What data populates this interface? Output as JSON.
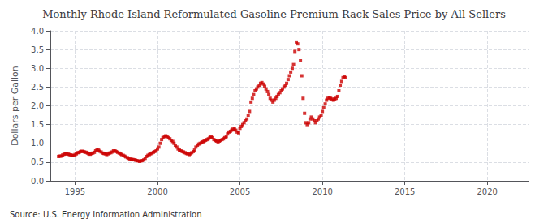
{
  "chart_data": {
    "type": "scatter",
    "title": "Monthly Rhode Island Reformulated Gasoline Premium Rack Sales Price by All Sellers",
    "ylabel": "Dollars per Gallon",
    "annotations": [
      "Source: U.S. Energy Information Administration"
    ],
    "color": "#CC0000",
    "marker": "square",
    "grid": true,
    "xlim": [
      1993.5,
      2022.5
    ],
    "ylim": [
      0.0,
      4.0
    ],
    "xticks": [
      1995,
      2000,
      2005,
      2010,
      2015,
      2020
    ],
    "yticks": [
      {
        "value": 0.0,
        "label": "0.0"
      },
      0.5,
      {
        "value": 1.0,
        "label": "1.0"
      },
      1.5,
      {
        "value": 2.0,
        "label": "2.0"
      },
      2.5,
      {
        "value": 3.0,
        "label": "3.0"
      },
      3.5,
      {
        "value": 4.0,
        "label": "4.0"
      }
    ],
    "x": [
      1994.0,
      1994.08,
      1994.17,
      1994.25,
      1994.33,
      1994.42,
      1994.5,
      1994.58,
      1994.67,
      1994.75,
      1994.83,
      1994.92,
      1995.0,
      1995.08,
      1995.17,
      1995.25,
      1995.33,
      1995.42,
      1995.5,
      1995.58,
      1995.67,
      1995.75,
      1995.83,
      1995.92,
      1996.0,
      1996.08,
      1996.17,
      1996.25,
      1996.33,
      1996.42,
      1996.5,
      1996.58,
      1996.67,
      1996.75,
      1996.83,
      1996.92,
      1997.0,
      1997.08,
      1997.17,
      1997.25,
      1997.33,
      1997.42,
      1997.5,
      1997.58,
      1997.67,
      1997.75,
      1997.83,
      1997.92,
      1998.0,
      1998.08,
      1998.17,
      1998.25,
      1998.33,
      1998.42,
      1998.5,
      1998.58,
      1998.67,
      1998.75,
      1998.83,
      1998.92,
      1999.0,
      1999.08,
      1999.17,
      1999.25,
      1999.33,
      1999.42,
      1999.5,
      1999.58,
      1999.67,
      1999.75,
      1999.83,
      1999.92,
      2000.0,
      2000.08,
      2000.17,
      2000.25,
      2000.33,
      2000.42,
      2000.5,
      2000.58,
      2000.67,
      2000.75,
      2000.83,
      2000.92,
      2001.0,
      2001.08,
      2001.17,
      2001.25,
      2001.33,
      2001.42,
      2001.5,
      2001.58,
      2001.67,
      2001.75,
      2001.83,
      2001.92,
      2002.0,
      2002.08,
      2002.17,
      2002.25,
      2002.33,
      2002.42,
      2002.5,
      2002.58,
      2002.67,
      2002.75,
      2002.83,
      2002.92,
      2003.0,
      2003.08,
      2003.17,
      2003.25,
      2003.33,
      2003.42,
      2003.5,
      2003.58,
      2003.67,
      2003.75,
      2003.83,
      2003.92,
      2004.0,
      2004.08,
      2004.17,
      2004.25,
      2004.33,
      2004.42,
      2004.5,
      2004.58,
      2004.67,
      2004.75,
      2004.83,
      2004.92,
      2005.0,
      2005.08,
      2005.17,
      2005.25,
      2005.33,
      2005.42,
      2005.5,
      2005.58,
      2005.67,
      2005.75,
      2005.83,
      2005.92,
      2006.0,
      2006.08,
      2006.17,
      2006.25,
      2006.33,
      2006.42,
      2006.5,
      2006.58,
      2006.67,
      2006.75,
      2006.83,
      2006.92,
      2007.0,
      2007.08,
      2007.17,
      2007.25,
      2007.33,
      2007.42,
      2007.5,
      2007.58,
      2007.67,
      2007.75,
      2007.83,
      2007.92,
      2008.0,
      2008.08,
      2008.17,
      2008.25,
      2008.33,
      2008.42,
      2008.5,
      2008.58,
      2008.67,
      2008.75,
      2008.83,
      2008.92,
      2009.0,
      2009.08,
      2009.17,
      2009.25,
      2009.33,
      2009.42,
      2009.5,
      2009.58,
      2009.67,
      2009.75,
      2009.83,
      2009.92,
      2010.0,
      2010.08,
      2010.17,
      2010.25,
      2010.33,
      2010.42,
      2010.5,
      2010.58,
      2010.67,
      2010.75,
      2010.83,
      2010.92,
      2011.0,
      2011.08,
      2011.17,
      2011.25,
      2011.33,
      2011.42
    ],
    "values": [
      0.65,
      0.66,
      0.66,
      0.69,
      0.71,
      0.72,
      0.72,
      0.71,
      0.7,
      0.69,
      0.68,
      0.67,
      0.7,
      0.72,
      0.75,
      0.76,
      0.78,
      0.79,
      0.78,
      0.77,
      0.76,
      0.74,
      0.72,
      0.71,
      0.73,
      0.74,
      0.76,
      0.8,
      0.83,
      0.82,
      0.79,
      0.77,
      0.74,
      0.73,
      0.72,
      0.7,
      0.72,
      0.74,
      0.75,
      0.77,
      0.8,
      0.8,
      0.78,
      0.76,
      0.74,
      0.72,
      0.7,
      0.68,
      0.66,
      0.64,
      0.62,
      0.6,
      0.58,
      0.57,
      0.57,
      0.56,
      0.55,
      0.54,
      0.53,
      0.52,
      0.53,
      0.54,
      0.56,
      0.6,
      0.65,
      0.68,
      0.7,
      0.72,
      0.74,
      0.76,
      0.78,
      0.8,
      0.85,
      0.9,
      1.0,
      1.1,
      1.15,
      1.18,
      1.2,
      1.18,
      1.15,
      1.12,
      1.08,
      1.05,
      1.0,
      0.95,
      0.9,
      0.85,
      0.82,
      0.8,
      0.78,
      0.77,
      0.75,
      0.73,
      0.72,
      0.7,
      0.72,
      0.75,
      0.78,
      0.82,
      0.9,
      0.95,
      0.98,
      1.0,
      1.02,
      1.04,
      1.06,
      1.08,
      1.1,
      1.12,
      1.15,
      1.18,
      1.15,
      1.1,
      1.08,
      1.06,
      1.04,
      1.06,
      1.08,
      1.1,
      1.12,
      1.15,
      1.18,
      1.25,
      1.3,
      1.32,
      1.35,
      1.38,
      1.38,
      1.35,
      1.3,
      1.28,
      1.4,
      1.45,
      1.5,
      1.55,
      1.6,
      1.65,
      1.75,
      1.85,
      2.1,
      2.2,
      2.3,
      2.4,
      2.45,
      2.5,
      2.55,
      2.6,
      2.62,
      2.58,
      2.52,
      2.45,
      2.38,
      2.3,
      2.2,
      2.15,
      2.1,
      2.15,
      2.2,
      2.25,
      2.3,
      2.35,
      2.4,
      2.45,
      2.5,
      2.55,
      2.6,
      2.7,
      2.8,
      2.9,
      3.0,
      3.1,
      3.45,
      3.7,
      3.65,
      3.5,
      3.2,
      2.8,
      2.2,
      1.8,
      1.55,
      1.5,
      1.55,
      1.65,
      1.7,
      1.65,
      1.6,
      1.55,
      1.6,
      1.65,
      1.7,
      1.75,
      1.85,
      1.95,
      2.05,
      2.15,
      2.2,
      2.22,
      2.2,
      2.18,
      2.15,
      2.18,
      2.2,
      2.25,
      2.4,
      2.55,
      2.65,
      2.75,
      2.78,
      2.75
    ]
  }
}
